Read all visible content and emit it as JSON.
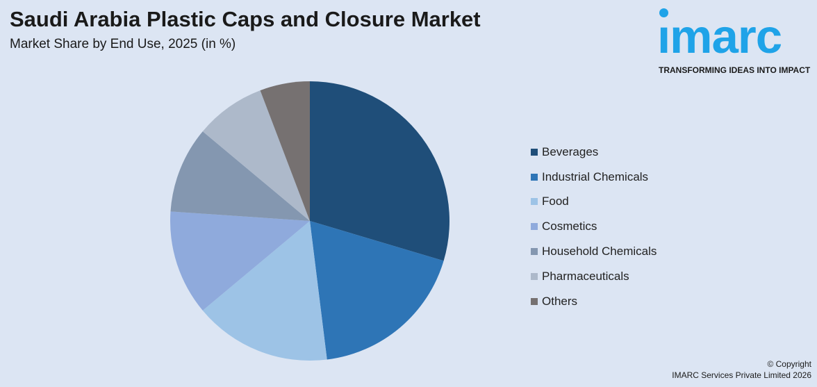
{
  "header": {
    "title": "Saudi Arabia Plastic Caps and Closure Market",
    "subtitle": "Market Share by End Use, 2025 (in %)"
  },
  "logo": {
    "word": "ımarc",
    "tagline": "TRANSFORMING IDEAS INTO IMPACT",
    "color": "#1fa3e8"
  },
  "footer": {
    "line1": "© Copyright",
    "line2": "IMARC Services Private Limited 2026"
  },
  "chart_data": {
    "type": "pie",
    "title": "Market Share by End Use, 2025 (in %)",
    "legend_position": "right",
    "categories": [
      "Beverages",
      "Industrial Chemicals",
      "Food",
      "Cosmetics",
      "Household Chemicals",
      "Pharmaceuticals",
      "Others"
    ],
    "values": [
      30.2,
      18.8,
      16.2,
      12.4,
      10.2,
      8.3,
      5.9
    ],
    "colors": [
      "#1f4e79",
      "#2e75b6",
      "#9dc3e6",
      "#8faadc",
      "#8497b0",
      "#adb9ca",
      "#767171"
    ]
  }
}
